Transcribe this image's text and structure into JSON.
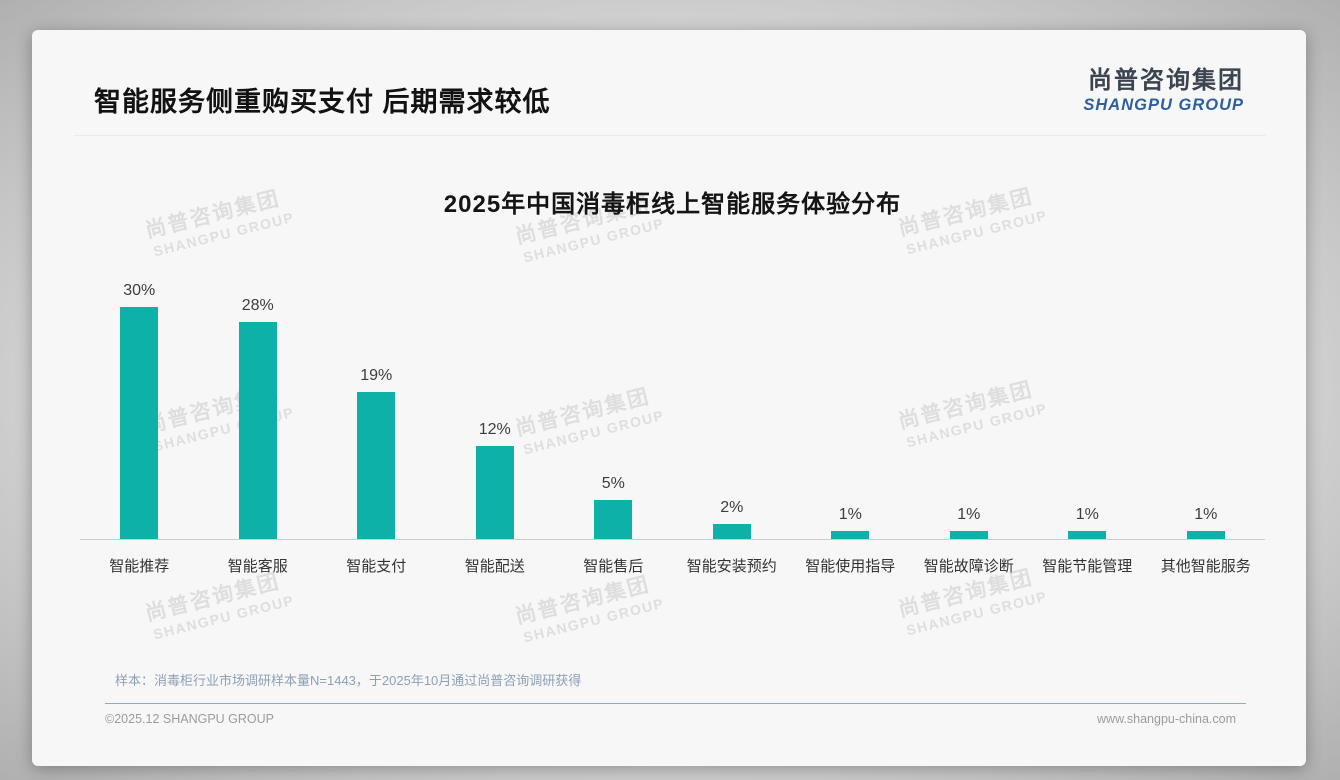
{
  "page": {
    "title": "智能服务侧重购买支付 后期需求较低",
    "logo": {
      "cn": "尚普咨询集团",
      "en": "SHANGPU GROUP"
    },
    "watermark": {
      "cn": "尚普咨询集团",
      "en": "SHANGPU GROUP"
    },
    "source_note": "样本：消毒柜行业市场调研样本量N=1443，于2025年10月通过尚普咨询调研获得",
    "footer": {
      "left": "©2025.12 SHANGPU GROUP",
      "right": "www.shangpu-china.com"
    }
  },
  "chart_data": {
    "type": "bar",
    "title": "2025年中国消毒柜线上智能服务体验分布",
    "categories": [
      "智能推荐",
      "智能客服",
      "智能支付",
      "智能配送",
      "智能售后",
      "智能安装预约",
      "智能使用指导",
      "智能故障诊断",
      "智能节能管理",
      "其他智能服务"
    ],
    "values": [
      30,
      28,
      19,
      12,
      5,
      2,
      1,
      1,
      1,
      1
    ],
    "value_labels": [
      "30%",
      "28%",
      "19%",
      "12%",
      "5%",
      "2%",
      "1%",
      "1%",
      "1%",
      "1%"
    ],
    "unit": "%",
    "xlabel": "",
    "ylabel": "",
    "ylim": [
      0,
      32
    ],
    "grid": false,
    "legend": false,
    "bar_color": "#0db1a7",
    "label_color": "#3d3d3d",
    "axis_line_color": "#cccccc"
  }
}
